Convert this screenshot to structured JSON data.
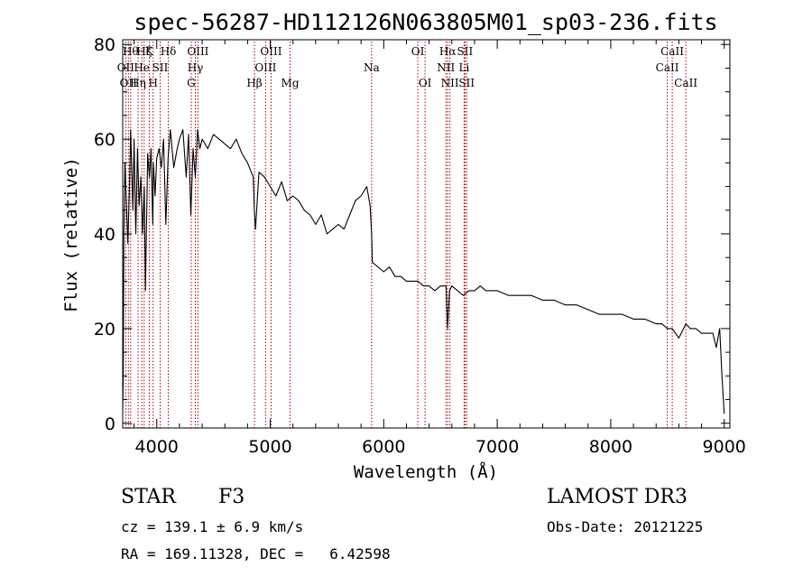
{
  "chart_data": {
    "type": "line",
    "title": "spec-56287-HD112126N063805M01_sp03-236.fits",
    "xlabel": "Wavelength (Å)",
    "ylabel": "Flux (relative)",
    "xlim": [
      3700,
      9050
    ],
    "ylim": [
      -1,
      81
    ],
    "xticks": [
      4000,
      5000,
      6000,
      7000,
      8000,
      9000
    ],
    "yticks": [
      0,
      20,
      40,
      60,
      80
    ],
    "series": [
      {
        "name": "flux",
        "x": [
          3700,
          3705,
          3710,
          3720,
          3730,
          3745,
          3760,
          3770,
          3790,
          3800,
          3815,
          3830,
          3845,
          3860,
          3875,
          3890,
          3900,
          3920,
          3935,
          3950,
          3965,
          3970,
          3985,
          4000,
          4020,
          4040,
          4060,
          4080,
          4100,
          4120,
          4150,
          4180,
          4200,
          4230,
          4260,
          4280,
          4300,
          4320,
          4340,
          4360,
          4380,
          4400,
          4450,
          4500,
          4550,
          4600,
          4650,
          4700,
          4750,
          4800,
          4850,
          4860,
          4870,
          4900,
          4950,
          5000,
          5050,
          5100,
          5150,
          5200,
          5250,
          5300,
          5350,
          5400,
          5450,
          5500,
          5550,
          5600,
          5650,
          5700,
          5750,
          5800,
          5850,
          5880,
          5893,
          5900,
          5950,
          6000,
          6050,
          6100,
          6150,
          6200,
          6250,
          6300,
          6350,
          6400,
          6450,
          6500,
          6550,
          6563,
          6580,
          6600,
          6650,
          6700,
          6750,
          6800,
          6850,
          6900,
          6950,
          7000,
          7100,
          7200,
          7300,
          7400,
          7500,
          7600,
          7700,
          7800,
          7900,
          8000,
          8100,
          8200,
          8300,
          8400,
          8450,
          8500,
          8542,
          8600,
          8662,
          8700,
          8750,
          8800,
          8850,
          8900,
          8930,
          8960,
          8980,
          9000
        ],
        "y": [
          3,
          10,
          40,
          55,
          48,
          38,
          50,
          62,
          45,
          60,
          40,
          58,
          46,
          52,
          40,
          50,
          28,
          57,
          52,
          58,
          42,
          55,
          48,
          56,
          58,
          54,
          60,
          42,
          56,
          62,
          54,
          58,
          60,
          62,
          52,
          61,
          44,
          58,
          52,
          62,
          58,
          60,
          58,
          61,
          60,
          59,
          58,
          60,
          57,
          55,
          52,
          45,
          41,
          53,
          52,
          50,
          48,
          51,
          47,
          48,
          47,
          45,
          44,
          42,
          44,
          40,
          41,
          42,
          41,
          44,
          47,
          48,
          50,
          46,
          40,
          34,
          33,
          32,
          33,
          31,
          31,
          30,
          30,
          30,
          29,
          29,
          28,
          29,
          29,
          20,
          28,
          29,
          28,
          27,
          28,
          28,
          29,
          28,
          28,
          28,
          27,
          27,
          27,
          26,
          26,
          25,
          25,
          24,
          23,
          23,
          23,
          22,
          22,
          21,
          21,
          20,
          20,
          18,
          21,
          20,
          20,
          19,
          19,
          19,
          16,
          20,
          10,
          2
        ]
      }
    ],
    "lines": [
      {
        "x": 3727,
        "label": "OII",
        "row": 2
      },
      {
        "x": 3750,
        "label": "OII",
        "row": 3
      },
      {
        "x": 3770,
        "label": "Hθ",
        "row": 1
      },
      {
        "x": 3835,
        "label": "Hη",
        "row": 3
      },
      {
        "x": 3868,
        "label": "He",
        "row": 2
      },
      {
        "x": 3889,
        "label": "Hζ",
        "row": 1
      },
      {
        "x": 3934,
        "label": "K",
        "row": 1
      },
      {
        "x": 3968,
        "label": "H",
        "row": 3
      },
      {
        "x": 4030,
        "label": "SII",
        "row": 2
      },
      {
        "x": 4102,
        "label": "Hδ",
        "row": 1
      },
      {
        "x": 4304,
        "label": "G",
        "row": 3
      },
      {
        "x": 4340,
        "label": "Hγ",
        "row": 2
      },
      {
        "x": 4363,
        "label": "OIII",
        "row": 1
      },
      {
        "x": 4861,
        "label": "Hβ",
        "row": 3
      },
      {
        "x": 4959,
        "label": "OIII",
        "row": 2
      },
      {
        "x": 5007,
        "label": "OIII",
        "row": 1
      },
      {
        "x": 5175,
        "label": "Mg",
        "row": 3
      },
      {
        "x": 5893,
        "label": "Na",
        "row": 2
      },
      {
        "x": 6300,
        "label": "OI",
        "row": 1
      },
      {
        "x": 6364,
        "label": "OI",
        "row": 3
      },
      {
        "x": 6548,
        "label": "NII",
        "row": 2
      },
      {
        "x": 6563,
        "label": "Hα",
        "row": 1
      },
      {
        "x": 6583,
        "label": "NII",
        "row": 3
      },
      {
        "x": 6708,
        "label": "Li",
        "row": 2
      },
      {
        "x": 6716,
        "label": "SII",
        "row": 1
      },
      {
        "x": 6731,
        "label": "SII",
        "row": 3
      },
      {
        "x": 8498,
        "label": "CaII",
        "row": 2
      },
      {
        "x": 8542,
        "label": "CaII",
        "row": 1
      },
      {
        "x": 8662,
        "label": "CaII",
        "row": 3
      }
    ],
    "colors": {
      "line": "#000000",
      "marker": "#aa0000",
      "axis": "#000000"
    }
  },
  "footer": {
    "object_type": "STAR",
    "subclass": "F3",
    "survey": "LAMOST DR3",
    "cz": "cz = 139.1 ± 6.9 km/s",
    "obs_date": "Obs-Date: 20121225",
    "coords": "RA = 169.11328, DEC =   6.42598"
  }
}
